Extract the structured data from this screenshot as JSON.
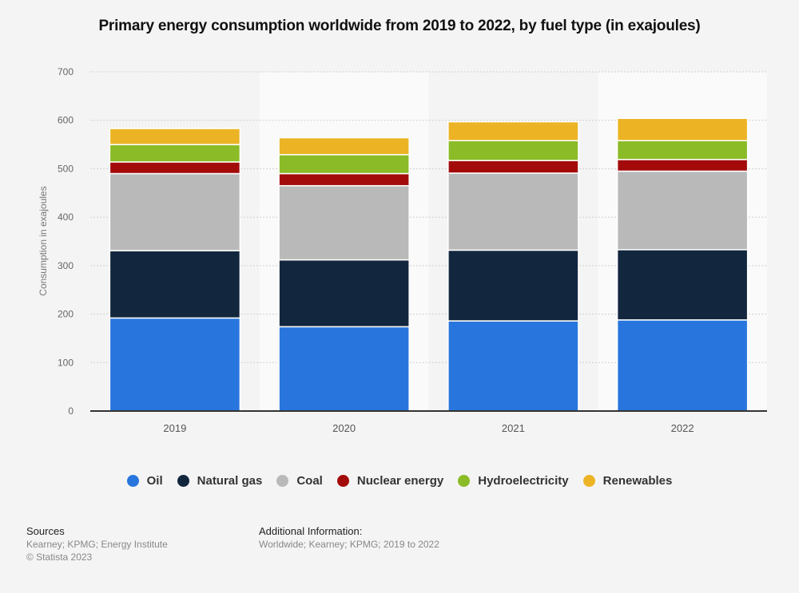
{
  "title": "Primary energy consumption worldwide from 2019 to 2022, by fuel type (in exajoules)",
  "chart_data": {
    "type": "bar",
    "stacked": true,
    "title": "Primary energy consumption worldwide from 2019 to 2022, by fuel type (in exajoules)",
    "xlabel": "",
    "ylabel": "Consumption in exajoules",
    "ylim": [
      0,
      700
    ],
    "yticks": [
      0,
      100,
      200,
      300,
      400,
      500,
      600,
      700
    ],
    "grid": true,
    "legend_position": "bottom",
    "categories": [
      "2019",
      "2020",
      "2021",
      "2022"
    ],
    "series": [
      {
        "name": "Oil",
        "color": "#2876dd",
        "values": [
          192,
          174,
          186,
          188
        ]
      },
      {
        "name": "Natural gas",
        "color": "#12273e",
        "values": [
          139,
          138,
          146,
          145
        ]
      },
      {
        "name": "Coal",
        "color": "#b9b9b9",
        "values": [
          159,
          153,
          159,
          162
        ]
      },
      {
        "name": "Nuclear energy",
        "color": "#a30b0b",
        "values": [
          24,
          25,
          26,
          24
        ]
      },
      {
        "name": "Hydroelectricity",
        "color": "#8bbb27",
        "values": [
          36,
          39,
          41,
          39
        ]
      },
      {
        "name": "Renewables",
        "color": "#ecb425",
        "values": [
          33,
          35,
          39,
          46
        ]
      }
    ]
  },
  "footer": {
    "sources_heading": "Sources",
    "sources_text": "Kearney; KPMG; Energy Institute",
    "copyright": "© Statista 2023",
    "additional_heading": "Additional Information:",
    "additional_text": "Worldwide; Kearney; KPMG; 2019 to 2022"
  }
}
